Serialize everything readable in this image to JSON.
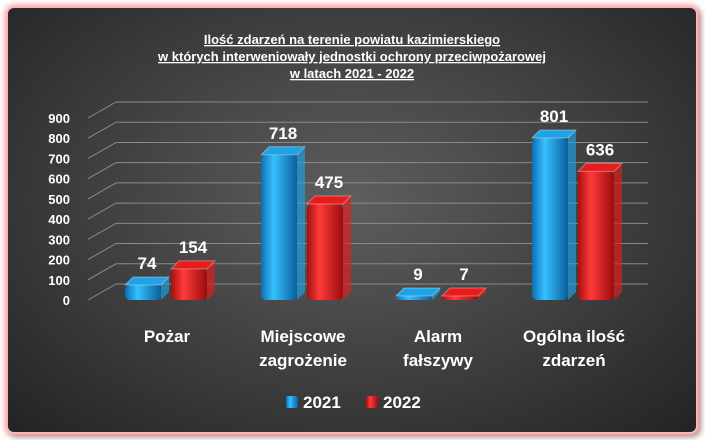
{
  "chart_data": {
    "type": "bar",
    "title_lines": [
      "Ilość zdarzeń na terenie powiatu kazimierskiego",
      "w których interweniowały jednostki ochrony przeciwpożarowej",
      "w latach 2021 - 2022"
    ],
    "categories": [
      [
        "Pożar"
      ],
      [
        "Miejscowe",
        "zagrożenie"
      ],
      [
        "Alarm",
        "fałszywy"
      ],
      [
        "Ogólna ilość",
        "zdarzeń"
      ]
    ],
    "series": [
      {
        "name": "2021",
        "values": [
          74,
          718,
          9,
          801
        ],
        "color": "#1fa3e6"
      },
      {
        "name": "2022",
        "values": [
          154,
          475,
          7,
          636
        ],
        "color": "#e81c1c"
      }
    ],
    "ylim": [
      0,
      900
    ],
    "yticks": [
      0,
      100,
      200,
      300,
      400,
      500,
      600,
      700,
      800,
      900
    ],
    "grid": true,
    "legend_position": "bottom",
    "style": "3d-cylinder"
  }
}
